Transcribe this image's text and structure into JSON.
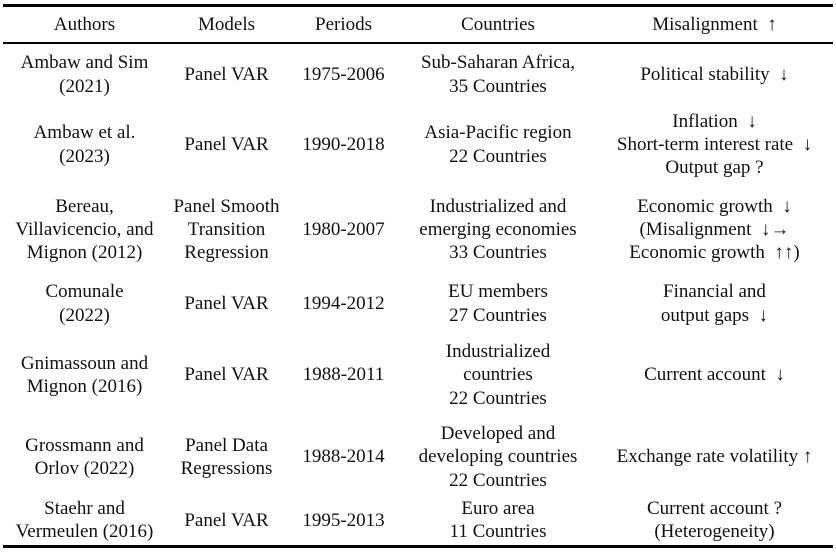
{
  "page": {
    "background_color": "#ffffff",
    "text_color": "#111111",
    "rule_color": "#000000"
  },
  "table": {
    "headers": [
      "Authors",
      "Models",
      "Periods",
      "Countries",
      "Misalignment  ↑"
    ],
    "rows": [
      {
        "authors": "Ambaw and Sim\n(2021)",
        "models": "Panel VAR",
        "periods": "1975-2006",
        "countries": "Sub-Saharan Africa,\n35 Countries",
        "misalignment": "Political stability  ↓"
      },
      {
        "authors": "Ambaw et al.\n(2023)",
        "models": "Panel VAR",
        "periods": "1990-2018",
        "countries": "Asia-Pacific region\n22 Countries",
        "misalignment": "Inflation  ↓\nShort-term interest rate  ↓\nOutput gap ?"
      },
      {
        "authors": "Bereau,\nVillavicencio, and\nMignon (2012)",
        "models": "Panel Smooth\nTransition\nRegression",
        "periods": "1980-2007",
        "countries": "Industrialized and\nemerging economies\n33 Countries",
        "misalignment": "Economic growth  ↓\n(Misalignment  ↓→\nEconomic growth  ↑↑)"
      },
      {
        "authors": "Comunale\n(2022)",
        "models": "Panel VAR",
        "periods": "1994-2012",
        "countries": "EU members\n27 Countries",
        "misalignment": "Financial and\noutput gaps  ↓"
      },
      {
        "authors": "Gnimassoun and\nMignon (2016)",
        "models": "Panel VAR",
        "periods": "1988-2011",
        "countries": "Industrialized\ncountries\n22 Countries",
        "misalignment": "Current account  ↓"
      },
      {
        "authors": "Grossmann and\nOrlov (2022)",
        "models": "Panel Data\nRegressions",
        "periods": "1988-2014",
        "countries": "Developed and\ndeveloping countries\n22 Countries",
        "misalignment": "Exchange rate volatility ↑"
      },
      {
        "authors": "Staehr and\nVermeulen (2016)",
        "models": "Panel VAR",
        "periods": "1995-2013",
        "countries": "Euro area\n11 Countries",
        "misalignment": "Current account ?\n(Heterogeneity)"
      }
    ]
  }
}
